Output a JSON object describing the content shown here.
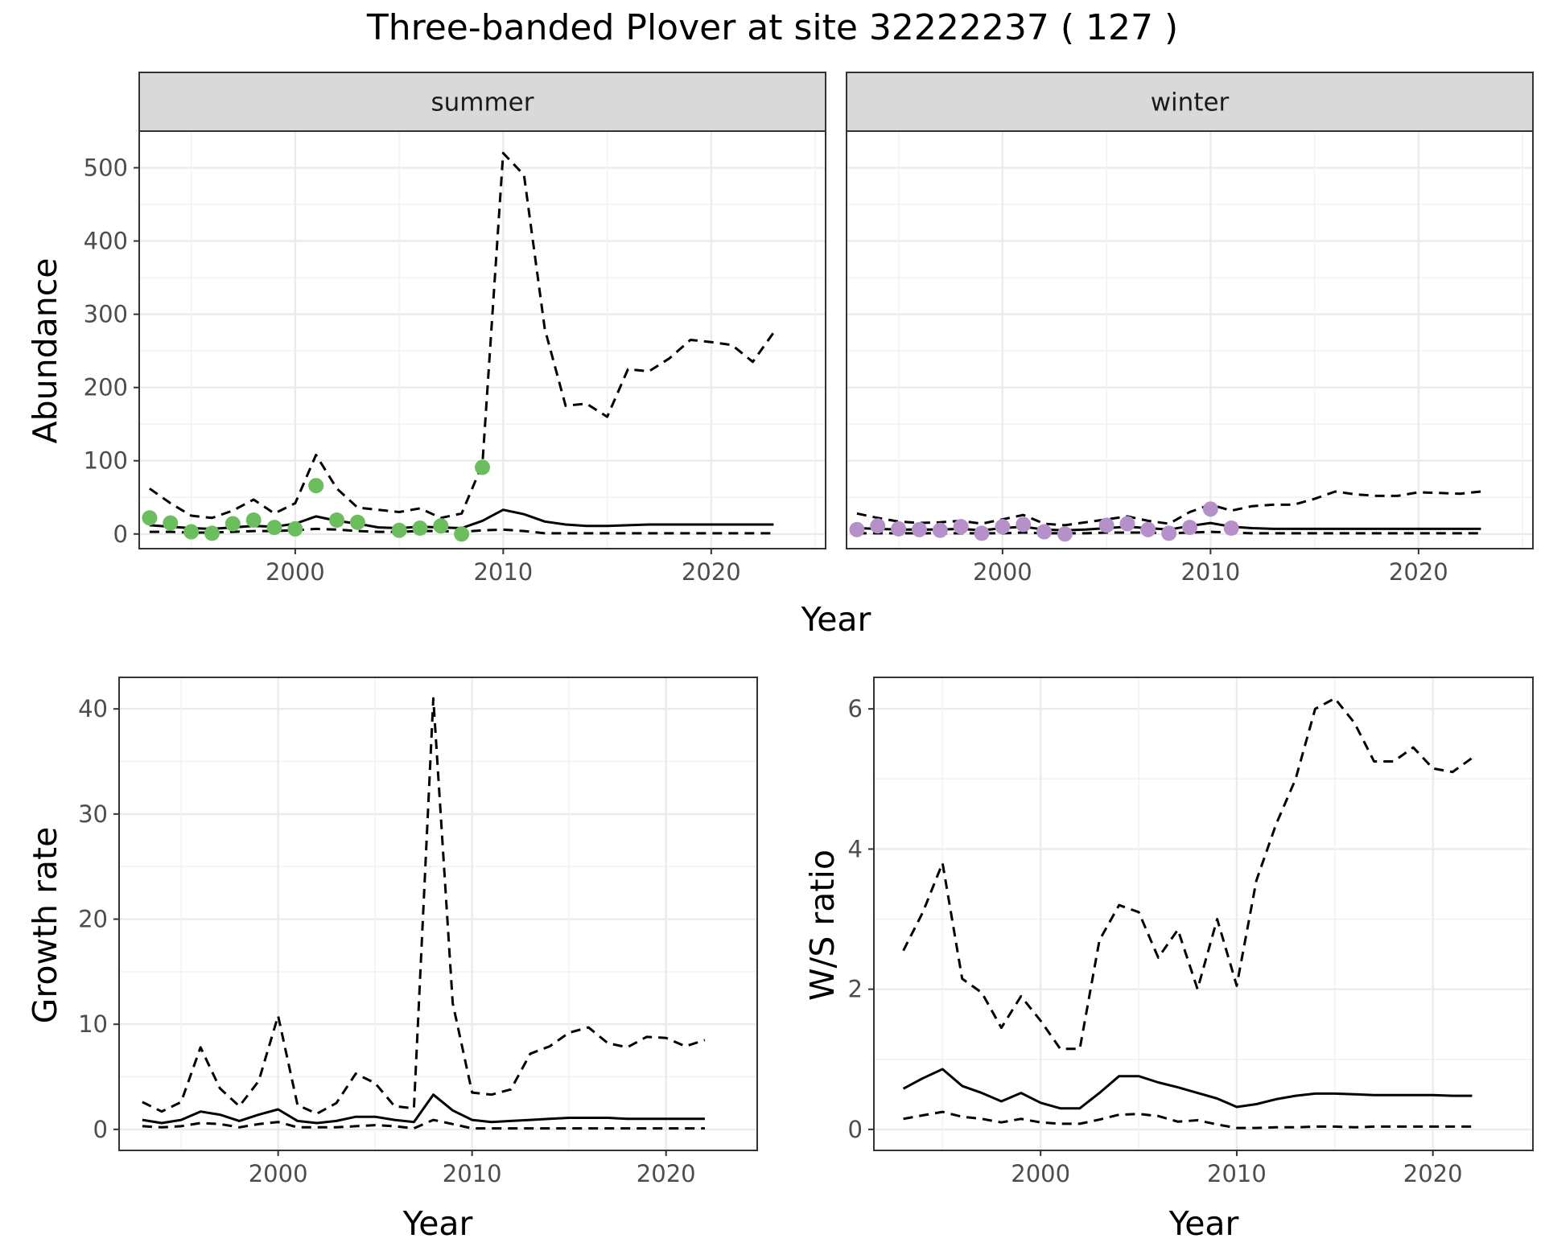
{
  "title": "Three-banded Plover at site 32222237 ( 127 )",
  "colors": {
    "panel_border": "#333333",
    "strip_fill": "#d9d9d9",
    "grid_major": "#ebebeb",
    "grid_minor": "#f2f2f2",
    "tick_text": "#4d4d4d",
    "summer_points": "#6cbd5e",
    "winter_points": "#b590c9",
    "lines": "#000000"
  },
  "chart_data": [
    {
      "type": "line",
      "panel": "summer",
      "strip": "summer",
      "xlabel": "Year",
      "ylabel": "Abundance",
      "xlim": [
        1992.5,
        2025.5
      ],
      "ylim": [
        -20,
        550
      ],
      "xticks": [
        2000,
        2010,
        2020
      ],
      "yticks": [
        0,
        100,
        200,
        300,
        400,
        500
      ],
      "grid": true,
      "series": [
        {
          "role": "upper",
          "style": "dashed",
          "x": [
            1993,
            1994,
            1995,
            1996,
            1997,
            1998,
            1999,
            2000,
            2001,
            2002,
            2003,
            2004,
            2005,
            2006,
            2007,
            2008,
            2009,
            2010,
            2011,
            2012,
            2013,
            2014,
            2015,
            2016,
            2017,
            2018,
            2019,
            2020,
            2021,
            2022,
            2023
          ],
          "y": [
            62,
            42,
            25,
            22,
            32,
            47,
            28,
            42,
            108,
            62,
            36,
            33,
            30,
            35,
            22,
            28,
            95,
            520,
            490,
            280,
            175,
            178,
            160,
            225,
            222,
            240,
            265,
            262,
            258,
            235,
            275
          ]
        },
        {
          "role": "central",
          "style": "solid",
          "x": [
            1993,
            1994,
            1995,
            1996,
            1997,
            1998,
            1999,
            2000,
            2001,
            2002,
            2003,
            2004,
            2005,
            2006,
            2007,
            2008,
            2009,
            2010,
            2011,
            2012,
            2013,
            2014,
            2015,
            2016,
            2017,
            2018,
            2019,
            2020,
            2021,
            2022,
            2023
          ],
          "y": [
            12,
            10,
            8,
            7,
            9,
            11,
            10,
            14,
            24,
            18,
            14,
            9,
            8,
            10,
            9,
            8,
            18,
            33,
            27,
            17,
            13,
            11,
            11,
            12,
            13,
            13,
            13,
            13,
            13,
            13,
            13
          ]
        },
        {
          "role": "lower",
          "style": "dashed",
          "x": [
            1993,
            1994,
            1995,
            1996,
            1997,
            1998,
            1999,
            2000,
            2001,
            2002,
            2003,
            2004,
            2005,
            2006,
            2007,
            2008,
            2009,
            2010,
            2011,
            2012,
            2013,
            2014,
            2015,
            2016,
            2017,
            2018,
            2019,
            2020,
            2021,
            2022,
            2023
          ],
          "y": [
            3,
            3,
            2,
            2,
            3,
            4,
            4,
            5,
            7,
            6,
            4,
            3,
            3,
            4,
            4,
            3,
            5,
            6,
            4,
            1,
            1,
            1,
            1,
            1,
            1,
            1,
            1,
            1,
            1,
            1,
            1
          ]
        }
      ],
      "points": {
        "x": [
          1993,
          1994,
          1995,
          1996,
          1997,
          1998,
          1999,
          2000,
          2001,
          2002,
          2003,
          2005,
          2006,
          2007,
          2008,
          2009
        ],
        "y": [
          22,
          15,
          3,
          1,
          14,
          19,
          9,
          7,
          66,
          19,
          16,
          5,
          8,
          11,
          0,
          91
        ]
      }
    },
    {
      "type": "line",
      "panel": "winter",
      "strip": "winter",
      "xlabel": "Year",
      "ylabel": "",
      "xlim": [
        1992.5,
        2025.5
      ],
      "ylim": [
        -20,
        550
      ],
      "xticks": [
        2000,
        2010,
        2020
      ],
      "yticks": [],
      "grid": true,
      "series": [
        {
          "role": "upper",
          "style": "dashed",
          "x": [
            1993,
            1994,
            1995,
            1996,
            1997,
            1998,
            1999,
            2000,
            2001,
            2002,
            2003,
            2004,
            2005,
            2006,
            2007,
            2008,
            2009,
            2010,
            2011,
            2012,
            2013,
            2014,
            2015,
            2016,
            2017,
            2018,
            2019,
            2020,
            2021,
            2022,
            2023
          ],
          "y": [
            28,
            22,
            17,
            15,
            16,
            18,
            14,
            20,
            26,
            14,
            12,
            16,
            20,
            24,
            18,
            14,
            30,
            40,
            32,
            38,
            40,
            40,
            48,
            58,
            54,
            52,
            52,
            57,
            56,
            55,
            58
          ]
        },
        {
          "role": "central",
          "style": "solid",
          "x": [
            1993,
            1994,
            1995,
            1996,
            1997,
            1998,
            1999,
            2000,
            2001,
            2002,
            2003,
            2004,
            2005,
            2006,
            2007,
            2008,
            2009,
            2010,
            2011,
            2012,
            2013,
            2014,
            2015,
            2016,
            2017,
            2018,
            2019,
            2020,
            2021,
            2022,
            2023
          ],
          "y": [
            8,
            7,
            6,
            6,
            6,
            7,
            5,
            8,
            10,
            6,
            5,
            6,
            8,
            10,
            8,
            6,
            11,
            15,
            10,
            8,
            7,
            7,
            7,
            7,
            7,
            7,
            7,
            7,
            7,
            7,
            7
          ]
        },
        {
          "role": "lower",
          "style": "dashed",
          "x": [
            1993,
            1994,
            1995,
            1996,
            1997,
            1998,
            1999,
            2000,
            2001,
            2002,
            2003,
            2004,
            2005,
            2006,
            2007,
            2008,
            2009,
            2010,
            2011,
            2012,
            2013,
            2014,
            2015,
            2016,
            2017,
            2018,
            2019,
            2020,
            2021,
            2022,
            2023
          ],
          "y": [
            1,
            1,
            1,
            1,
            1,
            1,
            1,
            1,
            2,
            1,
            1,
            1,
            2,
            2,
            2,
            1,
            2,
            3,
            2,
            1,
            1,
            1,
            1,
            1,
            1,
            1,
            1,
            1,
            1,
            1,
            1
          ]
        }
      ],
      "points": {
        "x": [
          1993,
          1994,
          1995,
          1996,
          1997,
          1998,
          1999,
          2000,
          2001,
          2002,
          2003,
          2005,
          2006,
          2007,
          2008,
          2009,
          2010,
          2011
        ],
        "y": [
          6,
          11,
          7,
          6,
          5,
          10,
          1,
          10,
          13,
          3,
          0,
          12,
          14,
          6,
          1,
          9,
          34,
          8
        ]
      }
    },
    {
      "type": "line",
      "panel": "growth",
      "xlabel": "Year",
      "ylabel": "Growth rate",
      "xlim": [
        1991.8,
        2024.7
      ],
      "ylim": [
        -2,
        43
      ],
      "xticks": [
        2000,
        2010,
        2020
      ],
      "yticks": [
        0,
        10,
        20,
        30,
        40
      ],
      "grid": true,
      "series": [
        {
          "role": "upper",
          "style": "dashed",
          "x": [
            1993,
            1994,
            1995,
            1996,
            1997,
            1998,
            1999,
            2000,
            2001,
            2002,
            2003,
            2004,
            2005,
            2006,
            2007,
            2008,
            2009,
            2010,
            2011,
            2012,
            2013,
            2014,
            2015,
            2016,
            2017,
            2018,
            2019,
            2020,
            2021,
            2022
          ],
          "y": [
            2.6,
            1.7,
            2.6,
            7.8,
            3.9,
            2.2,
            4.6,
            10.8,
            2.3,
            1.5,
            2.5,
            5.3,
            4.4,
            2.2,
            2.0,
            41,
            12,
            3.5,
            3.3,
            3.8,
            7.2,
            7.9,
            9.2,
            9.7,
            8.2,
            7.8,
            8.8,
            8.7,
            7.9,
            8.5
          ]
        },
        {
          "role": "central",
          "style": "solid",
          "x": [
            1993,
            1994,
            1995,
            1996,
            1997,
            1998,
            1999,
            2000,
            2001,
            2002,
            2003,
            2004,
            2005,
            2006,
            2007,
            2008,
            2009,
            2010,
            2011,
            2012,
            2013,
            2014,
            2015,
            2016,
            2017,
            2018,
            2019,
            2020,
            2021,
            2022
          ],
          "y": [
            0.9,
            0.6,
            0.9,
            1.7,
            1.4,
            0.8,
            1.4,
            1.9,
            0.8,
            0.6,
            0.8,
            1.2,
            1.2,
            0.9,
            0.7,
            3.3,
            1.8,
            0.9,
            0.7,
            0.8,
            0.9,
            1.0,
            1.1,
            1.1,
            1.1,
            1.0,
            1.0,
            1.0,
            1.0,
            1.0
          ]
        },
        {
          "role": "lower",
          "style": "dashed",
          "x": [
            1993,
            1994,
            1995,
            1996,
            1997,
            1998,
            1999,
            2000,
            2001,
            2002,
            2003,
            2004,
            2005,
            2006,
            2007,
            2008,
            2009,
            2010,
            2011,
            2012,
            2013,
            2014,
            2015,
            2016,
            2017,
            2018,
            2019,
            2020,
            2021,
            2022
          ],
          "y": [
            0.3,
            0.2,
            0.3,
            0.6,
            0.5,
            0.2,
            0.5,
            0.7,
            0.2,
            0.2,
            0.2,
            0.3,
            0.4,
            0.3,
            0.1,
            0.9,
            0.5,
            0.1,
            0.1,
            0.1,
            0.1,
            0.1,
            0.1,
            0.1,
            0.1,
            0.1,
            0.1,
            0.1,
            0.1,
            0.1
          ]
        }
      ]
    },
    {
      "type": "line",
      "panel": "ratio",
      "xlabel": "Year",
      "ylabel": "W/S ratio",
      "xlim": [
        1991.5,
        2025.1
      ],
      "ylim": [
        -0.3,
        6.45
      ],
      "xticks": [
        2000,
        2010,
        2020
      ],
      "yticks": [
        0,
        2,
        4,
        6
      ],
      "grid": true,
      "series": [
        {
          "role": "upper",
          "style": "dashed",
          "x": [
            1993,
            1994,
            1995,
            1996,
            1997,
            1998,
            1999,
            2000,
            2001,
            2002,
            2003,
            2004,
            2005,
            2006,
            2007,
            2008,
            2009,
            2010,
            2011,
            2012,
            2013,
            2014,
            2015,
            2016,
            2017,
            2018,
            2019,
            2020,
            2021,
            2022
          ],
          "y": [
            2.55,
            3.1,
            3.8,
            2.15,
            1.95,
            1.45,
            1.9,
            1.55,
            1.15,
            1.15,
            2.7,
            3.2,
            3.1,
            2.45,
            2.85,
            2.0,
            3.0,
            2.05,
            3.55,
            4.35,
            5.0,
            6.0,
            6.15,
            5.8,
            5.25,
            5.25,
            5.45,
            5.15,
            5.1,
            5.3
          ]
        },
        {
          "role": "central",
          "style": "solid",
          "x": [
            1993,
            1994,
            1995,
            1996,
            1997,
            1998,
            1999,
            2000,
            2001,
            2002,
            2003,
            2004,
            2005,
            2006,
            2007,
            2008,
            2009,
            2010,
            2011,
            2012,
            2013,
            2014,
            2015,
            2016,
            2017,
            2018,
            2019,
            2020,
            2021,
            2022
          ],
          "y": [
            0.58,
            0.73,
            0.86,
            0.62,
            0.52,
            0.4,
            0.52,
            0.38,
            0.3,
            0.3,
            0.52,
            0.76,
            0.76,
            0.67,
            0.6,
            0.52,
            0.44,
            0.32,
            0.36,
            0.43,
            0.48,
            0.51,
            0.51,
            0.5,
            0.49,
            0.49,
            0.49,
            0.49,
            0.48,
            0.48
          ]
        },
        {
          "role": "lower",
          "style": "dashed",
          "x": [
            1993,
            1994,
            1995,
            1996,
            1997,
            1998,
            1999,
            2000,
            2001,
            2002,
            2003,
            2004,
            2005,
            2006,
            2007,
            2008,
            2009,
            2010,
            2011,
            2012,
            2013,
            2014,
            2015,
            2016,
            2017,
            2018,
            2019,
            2020,
            2021,
            2022
          ],
          "y": [
            0.15,
            0.2,
            0.25,
            0.18,
            0.15,
            0.1,
            0.15,
            0.1,
            0.08,
            0.08,
            0.14,
            0.21,
            0.22,
            0.19,
            0.11,
            0.13,
            0.07,
            0.02,
            0.02,
            0.03,
            0.03,
            0.04,
            0.04,
            0.03,
            0.04,
            0.04,
            0.04,
            0.04,
            0.04,
            0.04
          ]
        }
      ]
    }
  ]
}
